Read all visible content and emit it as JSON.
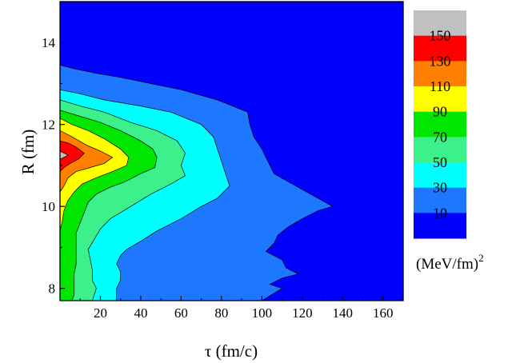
{
  "chart_data": {
    "type": "heatmap",
    "subtype": "filled-contour",
    "xlabel": "τ (fm/c)",
    "ylabel": "R (fm)",
    "xlim": [
      0,
      170
    ],
    "ylim": [
      7.7,
      15
    ],
    "x_ticks": [
      20,
      40,
      60,
      80,
      100,
      120,
      140,
      160
    ],
    "y_ticks": [
      8,
      10,
      12,
      14
    ],
    "grid": false,
    "colorbar": {
      "placement": "right",
      "unit": "(MeV/fm)",
      "unit_superscript": "2",
      "labels": [
        "150",
        "130",
        "110",
        "90",
        "70",
        "50",
        "30",
        "10"
      ],
      "bands": [
        {
          "lower": 0,
          "upper": 20,
          "color": "#0000ff"
        },
        {
          "lower": 20,
          "upper": 40,
          "color": "#1e78ff"
        },
        {
          "lower": 40,
          "upper": 60,
          "color": "#00ffff"
        },
        {
          "lower": 60,
          "upper": 80,
          "color": "#3cf08c"
        },
        {
          "lower": 80,
          "upper": 100,
          "color": "#00e600"
        },
        {
          "lower": 100,
          "upper": 120,
          "color": "#ffff00"
        },
        {
          "lower": 120,
          "upper": 140,
          "color": "#ff8000"
        },
        {
          "lower": 140,
          "upper": 160,
          "color": "#ff0000"
        },
        {
          "lower": 160,
          "upper": 180,
          "color": "#c0c0c0"
        }
      ]
    },
    "contours": [
      {
        "level": 20,
        "points": [
          [
            0,
            13.45
          ],
          [
            8,
            13.35
          ],
          [
            18,
            13.25
          ],
          [
            30,
            13.15
          ],
          [
            45,
            13.0
          ],
          [
            60,
            12.85
          ],
          [
            78,
            12.6
          ],
          [
            93,
            12.3
          ],
          [
            94,
            12.0
          ],
          [
            96,
            11.7
          ],
          [
            100,
            11.4
          ],
          [
            103,
            11.1
          ],
          [
            106,
            10.8
          ],
          [
            115,
            10.55
          ],
          [
            126,
            10.25
          ],
          [
            135,
            10.0
          ],
          [
            128,
            9.9
          ],
          [
            120,
            9.7
          ],
          [
            113,
            9.5
          ],
          [
            108,
            9.3
          ],
          [
            106,
            9.1
          ],
          [
            102,
            8.9
          ],
          [
            110,
            8.7
          ],
          [
            112,
            8.5
          ],
          [
            118,
            8.35
          ],
          [
            110,
            8.25
          ],
          [
            104,
            8.1
          ],
          [
            110,
            8.0
          ],
          [
            105,
            7.85
          ],
          [
            100,
            7.7
          ],
          [
            0,
            7.7
          ]
        ]
      },
      {
        "level": 40,
        "points": [
          [
            0,
            12.85
          ],
          [
            10,
            12.75
          ],
          [
            22,
            12.6
          ],
          [
            40,
            12.45
          ],
          [
            55,
            12.3
          ],
          [
            70,
            12.0
          ],
          [
            76,
            11.7
          ],
          [
            78,
            11.4
          ],
          [
            80,
            11.1
          ],
          [
            82,
            10.8
          ],
          [
            84,
            10.5
          ],
          [
            78,
            10.2
          ],
          [
            70,
            10.0
          ],
          [
            60,
            9.7
          ],
          [
            48,
            9.4
          ],
          [
            40,
            9.15
          ],
          [
            33,
            8.95
          ],
          [
            30,
            8.8
          ],
          [
            28,
            8.6
          ],
          [
            30,
            8.4
          ],
          [
            30,
            8.2
          ],
          [
            28,
            8.0
          ],
          [
            28,
            7.7
          ],
          [
            0,
            7.7
          ]
        ]
      },
      {
        "level": 60,
        "points": [
          [
            0,
            12.6
          ],
          [
            10,
            12.45
          ],
          [
            22,
            12.3
          ],
          [
            35,
            12.05
          ],
          [
            48,
            11.85
          ],
          [
            58,
            11.6
          ],
          [
            62,
            11.3
          ],
          [
            60,
            11.0
          ],
          [
            62,
            10.75
          ],
          [
            55,
            10.55
          ],
          [
            45,
            10.3
          ],
          [
            35,
            10.0
          ],
          [
            25,
            9.7
          ],
          [
            20,
            9.45
          ],
          [
            17,
            9.2
          ],
          [
            14,
            8.95
          ],
          [
            15,
            8.7
          ],
          [
            16,
            8.45
          ],
          [
            16,
            8.2
          ],
          [
            18,
            8.0
          ],
          [
            16,
            7.7
          ],
          [
            0,
            7.7
          ]
        ]
      },
      {
        "level": 80,
        "points": [
          [
            0,
            12.35
          ],
          [
            10,
            12.2
          ],
          [
            20,
            12.05
          ],
          [
            30,
            11.85
          ],
          [
            40,
            11.6
          ],
          [
            46,
            11.4
          ],
          [
            48,
            11.2
          ],
          [
            47,
            10.95
          ],
          [
            40,
            10.8
          ],
          [
            32,
            10.6
          ],
          [
            24,
            10.45
          ],
          [
            18,
            10.3
          ],
          [
            14,
            10.1
          ],
          [
            12,
            9.85
          ],
          [
            10,
            9.6
          ],
          [
            8,
            9.35
          ],
          [
            8,
            9.1
          ],
          [
            8,
            8.85
          ],
          [
            8,
            8.6
          ],
          [
            7,
            8.35
          ],
          [
            7,
            8.1
          ],
          [
            7,
            7.85
          ],
          [
            6,
            7.7
          ],
          [
            0,
            7.7
          ]
        ]
      },
      {
        "level": 100,
        "points": [
          [
            0,
            12.15
          ],
          [
            6,
            12.0
          ],
          [
            14,
            11.85
          ],
          [
            22,
            11.65
          ],
          [
            30,
            11.4
          ],
          [
            34,
            11.2
          ],
          [
            33,
            11.0
          ],
          [
            26,
            10.85
          ],
          [
            18,
            10.7
          ],
          [
            11,
            10.55
          ],
          [
            7,
            10.35
          ],
          [
            4,
            10.15
          ],
          [
            2,
            9.9
          ],
          [
            1,
            9.6
          ],
          [
            0,
            9.4
          ]
        ]
      },
      {
        "level": 120,
        "points": [
          [
            0,
            11.85
          ],
          [
            6,
            11.7
          ],
          [
            13,
            11.5
          ],
          [
            20,
            11.35
          ],
          [
            26,
            11.2
          ],
          [
            22,
            11.05
          ],
          [
            15,
            10.95
          ],
          [
            8,
            10.85
          ],
          [
            4,
            10.7
          ],
          [
            2,
            10.5
          ],
          [
            0,
            10.35
          ]
        ]
      },
      {
        "level": 140,
        "points": [
          [
            0,
            11.6
          ],
          [
            4,
            11.55
          ],
          [
            8,
            11.45
          ],
          [
            12,
            11.3
          ],
          [
            9,
            11.15
          ],
          [
            5,
            11.05
          ],
          [
            2,
            10.95
          ],
          [
            0,
            10.85
          ]
        ]
      },
      {
        "level": 160,
        "points": [
          [
            0,
            11.35
          ],
          [
            2,
            11.3
          ],
          [
            4,
            11.25
          ],
          [
            2,
            11.2
          ],
          [
            0,
            11.15
          ]
        ]
      }
    ]
  }
}
